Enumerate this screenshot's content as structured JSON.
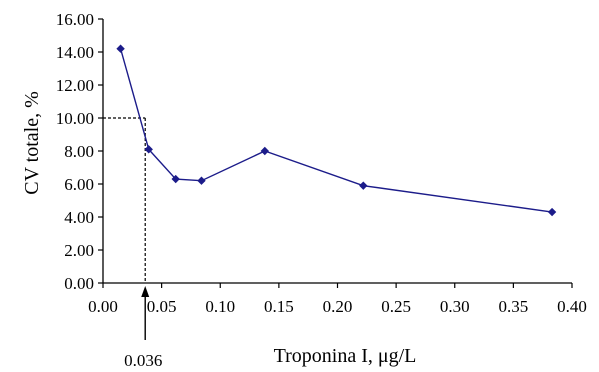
{
  "chart_data": {
    "type": "line",
    "title": "",
    "xlabel": "Troponina I, μg/L",
    "ylabel": "CV totale, %",
    "xlim": [
      0,
      0.4
    ],
    "ylim": [
      0,
      16
    ],
    "x_ticks": [
      "0.00",
      "0.05",
      "0.10",
      "0.15",
      "0.20",
      "0.25",
      "0.30",
      "0.35",
      "0.40"
    ],
    "y_ticks": [
      "0.00",
      "2.00",
      "4.00",
      "6.00",
      "8.00",
      "10.00",
      "12.00",
      "14.00",
      "16.00"
    ],
    "grid": false,
    "legend": "none",
    "series": [
      {
        "x": [
          0.015,
          0.039,
          0.062,
          0.084,
          0.138,
          0.222,
          0.383
        ],
        "y": [
          14.2,
          8.1,
          6.3,
          6.2,
          8.0,
          5.9,
          4.3
        ],
        "color": "#1c1c8a"
      }
    ],
    "annotation": {
      "x": 0.036,
      "y": 10.0,
      "label": "0.036"
    }
  }
}
